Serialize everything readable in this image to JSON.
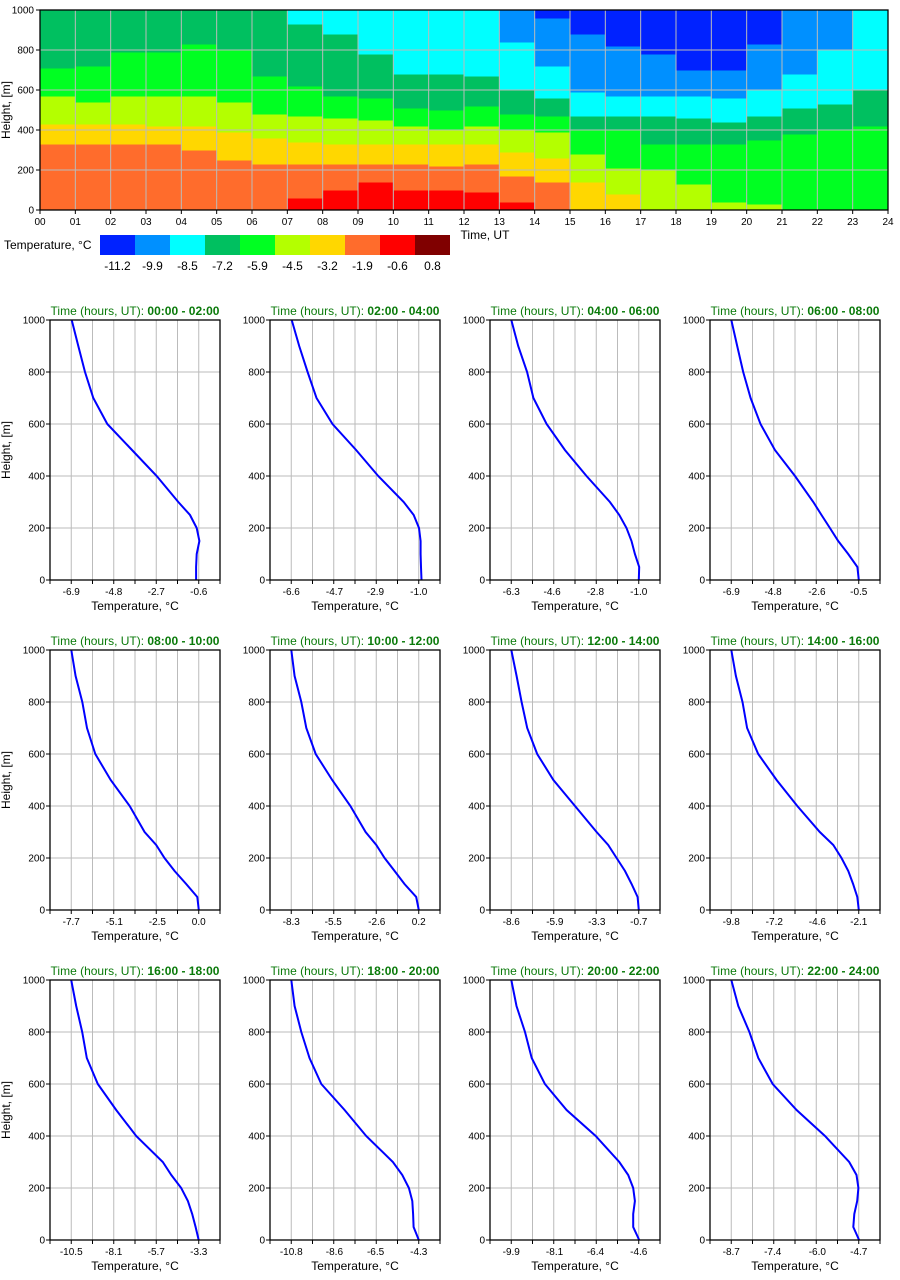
{
  "chart_data": [
    {
      "type": "heatmap",
      "xlabel": "Time, UT",
      "ylabel": "Height, [m]",
      "xlim": [
        0,
        24
      ],
      "ylim": [
        0,
        1000
      ],
      "x_tick_labels": [
        "00",
        "01",
        "02",
        "03",
        "04",
        "05",
        "06",
        "07",
        "08",
        "09",
        "10",
        "11",
        "12",
        "13",
        "14",
        "15",
        "16",
        "17",
        "18",
        "19",
        "20",
        "21",
        "22",
        "23",
        "24"
      ],
      "y_ticks": [
        0,
        200,
        400,
        600,
        800,
        1000
      ],
      "grid": true,
      "colorbar": {
        "label": "Temperature, °C",
        "values": [
          "-11.2",
          "-9.9",
          "-8.5",
          "-7.2",
          "-5.9",
          "-4.5",
          "-3.2",
          "-1.9",
          "-0.6",
          "0.8"
        ],
        "colors": [
          "#0022ff",
          "#0090ff",
          "#00ffff",
          "#00c060",
          "#00ff22",
          "#b4ff00",
          "#ffd700",
          "#ff6c2c",
          "#ff0000",
          "#800000"
        ]
      },
      "hourly_layers_note": "per hour: [color class index, top height m] from ground up",
      "hourly_layers": [
        [
          [
            7,
            330
          ],
          [
            6,
            430
          ],
          [
            5,
            570
          ],
          [
            4,
            710
          ],
          [
            3,
            1000
          ]
        ],
        [
          [
            7,
            330
          ],
          [
            6,
            430
          ],
          [
            5,
            540
          ],
          [
            4,
            720
          ],
          [
            3,
            1000
          ]
        ],
        [
          [
            7,
            330
          ],
          [
            6,
            430
          ],
          [
            5,
            570
          ],
          [
            4,
            790
          ],
          [
            3,
            1000
          ]
        ],
        [
          [
            7,
            330
          ],
          [
            6,
            420
          ],
          [
            5,
            570
          ],
          [
            4,
            790
          ],
          [
            3,
            1000
          ]
        ],
        [
          [
            7,
            300
          ],
          [
            6,
            420
          ],
          [
            5,
            570
          ],
          [
            4,
            830
          ],
          [
            3,
            1000
          ]
        ],
        [
          [
            7,
            250
          ],
          [
            6,
            390
          ],
          [
            5,
            540
          ],
          [
            4,
            800
          ],
          [
            3,
            1000
          ]
        ],
        [
          [
            7,
            230
          ],
          [
            6,
            360
          ],
          [
            5,
            480
          ],
          [
            4,
            670
          ],
          [
            3,
            1000
          ]
        ],
        [
          [
            8,
            60
          ],
          [
            7,
            230
          ],
          [
            6,
            340
          ],
          [
            5,
            470
          ],
          [
            4,
            620
          ],
          [
            3,
            930
          ],
          [
            2,
            1000
          ]
        ],
        [
          [
            8,
            100
          ],
          [
            7,
            230
          ],
          [
            6,
            330
          ],
          [
            5,
            460
          ],
          [
            4,
            570
          ],
          [
            3,
            880
          ],
          [
            2,
            1000
          ]
        ],
        [
          [
            8,
            140
          ],
          [
            7,
            230
          ],
          [
            6,
            330
          ],
          [
            5,
            450
          ],
          [
            4,
            560
          ],
          [
            3,
            780
          ],
          [
            2,
            1000
          ]
        ],
        [
          [
            8,
            100
          ],
          [
            7,
            230
          ],
          [
            6,
            330
          ],
          [
            5,
            420
          ],
          [
            4,
            510
          ],
          [
            3,
            680
          ],
          [
            2,
            1000
          ]
        ],
        [
          [
            8,
            100
          ],
          [
            7,
            220
          ],
          [
            6,
            330
          ],
          [
            5,
            400
          ],
          [
            4,
            500
          ],
          [
            3,
            680
          ],
          [
            2,
            1000
          ]
        ],
        [
          [
            8,
            90
          ],
          [
            7,
            230
          ],
          [
            6,
            330
          ],
          [
            5,
            420
          ],
          [
            4,
            520
          ],
          [
            3,
            670
          ],
          [
            2,
            1000
          ]
        ],
        [
          [
            8,
            40
          ],
          [
            7,
            170
          ],
          [
            6,
            290
          ],
          [
            5,
            400
          ],
          [
            4,
            480
          ],
          [
            3,
            600
          ],
          [
            2,
            840
          ],
          [
            1,
            1000
          ]
        ],
        [
          [
            7,
            140
          ],
          [
            6,
            260
          ],
          [
            5,
            390
          ],
          [
            4,
            470
          ],
          [
            3,
            560
          ],
          [
            2,
            720
          ],
          [
            1,
            960
          ],
          [
            0,
            1000
          ]
        ],
        [
          [
            6,
            140
          ],
          [
            5,
            280
          ],
          [
            4,
            400
          ],
          [
            3,
            470
          ],
          [
            2,
            590
          ],
          [
            1,
            880
          ],
          [
            0,
            1000
          ]
        ],
        [
          [
            6,
            80
          ],
          [
            5,
            210
          ],
          [
            4,
            400
          ],
          [
            3,
            470
          ],
          [
            2,
            570
          ],
          [
            1,
            820
          ],
          [
            0,
            1000
          ]
        ],
        [
          [
            5,
            200
          ],
          [
            4,
            330
          ],
          [
            3,
            470
          ],
          [
            2,
            570
          ],
          [
            1,
            780
          ],
          [
            0,
            1000
          ]
        ],
        [
          [
            5,
            130
          ],
          [
            4,
            330
          ],
          [
            3,
            460
          ],
          [
            2,
            570
          ],
          [
            1,
            700
          ],
          [
            0,
            1000
          ]
        ],
        [
          [
            5,
            40
          ],
          [
            4,
            330
          ],
          [
            3,
            440
          ],
          [
            2,
            560
          ],
          [
            1,
            700
          ],
          [
            0,
            1000
          ]
        ],
        [
          [
            5,
            30
          ],
          [
            4,
            350
          ],
          [
            3,
            470
          ],
          [
            2,
            600
          ],
          [
            1,
            830
          ],
          [
            0,
            1000
          ]
        ],
        [
          [
            4,
            380
          ],
          [
            3,
            510
          ],
          [
            2,
            680
          ],
          [
            1,
            1000
          ]
        ],
        [
          [
            4,
            400
          ],
          [
            3,
            530
          ],
          [
            2,
            800
          ],
          [
            1,
            1000
          ]
        ],
        [
          [
            4,
            420
          ],
          [
            3,
            600
          ],
          [
            2,
            1000
          ]
        ]
      ]
    },
    {
      "type": "line",
      "title_prefix": "Time (hours, UT): ",
      "xlabel": "Temperature, °C",
      "ylabel": "Height, [m]",
      "ylim": [
        0,
        1000
      ],
      "y_ticks": [
        0,
        200,
        400,
        600,
        800,
        1000
      ],
      "line_color": "#0000ff",
      "heights": [
        0,
        50,
        100,
        150,
        200,
        250,
        300,
        400,
        500,
        600,
        700,
        800,
        900,
        1000
      ],
      "panels": [
        {
          "period": "00:00 - 02:00",
          "x_ticks": [
            "-6.9",
            "-4.8",
            "-2.7",
            "-0.6"
          ],
          "temps": [
            -0.73,
            -0.73,
            -0.7,
            -0.57,
            -0.7,
            -1.03,
            -1.61,
            -2.68,
            -3.9,
            -5.12,
            -5.81,
            -6.22,
            -6.55,
            -6.88
          ]
        },
        {
          "period": "02:00 - 04:00",
          "x_ticks": [
            "-6.6",
            "-4.7",
            "-2.9",
            "-1.0"
          ],
          "temps": [
            -0.88,
            -0.9,
            -0.92,
            -0.92,
            -0.99,
            -1.22,
            -1.66,
            -2.78,
            -3.75,
            -4.79,
            -5.49,
            -5.88,
            -6.25,
            -6.58
          ]
        },
        {
          "period": "04:00 - 06:00",
          "x_ticks": [
            "-6.3",
            "-4.6",
            "-2.8",
            "-1.0"
          ],
          "temps": [
            -1.0,
            -0.98,
            -1.16,
            -1.3,
            -1.51,
            -1.81,
            -2.2,
            -3.17,
            -4.07,
            -4.83,
            -5.38,
            -5.64,
            -6.01,
            -6.3
          ]
        },
        {
          "period": "06:00 - 08:00",
          "x_ticks": [
            "-6.9",
            "-4.8",
            "-2.6",
            "-0.5"
          ],
          "temps": [
            -0.5,
            -0.57,
            -1.03,
            -1.53,
            -1.95,
            -2.37,
            -2.78,
            -3.7,
            -4.71,
            -5.43,
            -5.93,
            -6.3,
            -6.6,
            -6.9
          ]
        },
        {
          "period": "08:00 - 10:00",
          "x_ticks": [
            "-7.7",
            "-5.1",
            "-2.5",
            "0.0"
          ],
          "temps": [
            0.0,
            -0.09,
            -0.76,
            -1.46,
            -2.07,
            -2.57,
            -3.27,
            -4.17,
            -5.32,
            -6.25,
            -6.75,
            -7.03,
            -7.44,
            -7.7
          ]
        },
        {
          "period": "10:00 - 12:00",
          "x_ticks": [
            "-8.3",
            "-5.5",
            "-2.6",
            "0.2"
          ],
          "temps": [
            0.2,
            0.03,
            -0.75,
            -1.41,
            -2.08,
            -2.63,
            -3.34,
            -4.36,
            -5.57,
            -6.67,
            -7.3,
            -7.63,
            -8.08,
            -8.3
          ]
        },
        {
          "period": "12:00 - 14:00",
          "x_ticks": [
            "-8.6",
            "-5.9",
            "-3.3",
            "-0.7"
          ],
          "temps": [
            -0.7,
            -0.77,
            -1.14,
            -1.55,
            -2.07,
            -2.59,
            -3.31,
            -4.65,
            -5.99,
            -6.99,
            -7.61,
            -7.96,
            -8.27,
            -8.6
          ]
        },
        {
          "period": "14:00 - 16:00",
          "x_ticks": [
            "-9.8",
            "-7.2",
            "-4.6",
            "-2.1"
          ],
          "temps": [
            -2.1,
            -2.19,
            -2.44,
            -2.73,
            -3.14,
            -3.64,
            -4.45,
            -5.81,
            -7.06,
            -8.17,
            -8.84,
            -9.12,
            -9.52,
            -9.8
          ]
        },
        {
          "period": "16:00 - 18:00",
          "x_ticks": [
            "-10.5",
            "-8.1",
            "-5.7",
            "-3.3"
          ],
          "temps": [
            -3.3,
            -3.48,
            -3.67,
            -3.91,
            -4.29,
            -4.85,
            -5.33,
            -6.83,
            -7.96,
            -9.0,
            -9.62,
            -9.88,
            -10.22,
            -10.5
          ]
        },
        {
          "period": "18:00 - 20:00",
          "x_ticks": [
            "-10.8",
            "-8.6",
            "-6.5",
            "-4.3"
          ],
          "temps": [
            -4.3,
            -4.56,
            -4.59,
            -4.63,
            -4.8,
            -5.14,
            -5.62,
            -6.98,
            -8.08,
            -9.27,
            -9.87,
            -10.29,
            -10.63,
            -10.8
          ]
        },
        {
          "period": "20:00 - 22:00",
          "x_ticks": [
            "-9.9",
            "-8.1",
            "-6.4",
            "-4.6"
          ],
          "temps": [
            -4.58,
            -4.83,
            -4.83,
            -4.76,
            -4.83,
            -5.04,
            -5.41,
            -6.39,
            -7.6,
            -8.5,
            -9.05,
            -9.33,
            -9.68,
            -9.9
          ]
        },
        {
          "period": "22:00 - 24:00",
          "x_ticks": [
            "-8.7",
            "-7.4",
            "-6.0",
            "-4.7"
          ],
          "temps": [
            -4.69,
            -4.87,
            -4.84,
            -4.75,
            -4.71,
            -4.77,
            -5.0,
            -5.76,
            -6.65,
            -7.4,
            -7.85,
            -8.13,
            -8.48,
            -8.7
          ]
        }
      ]
    }
  ]
}
